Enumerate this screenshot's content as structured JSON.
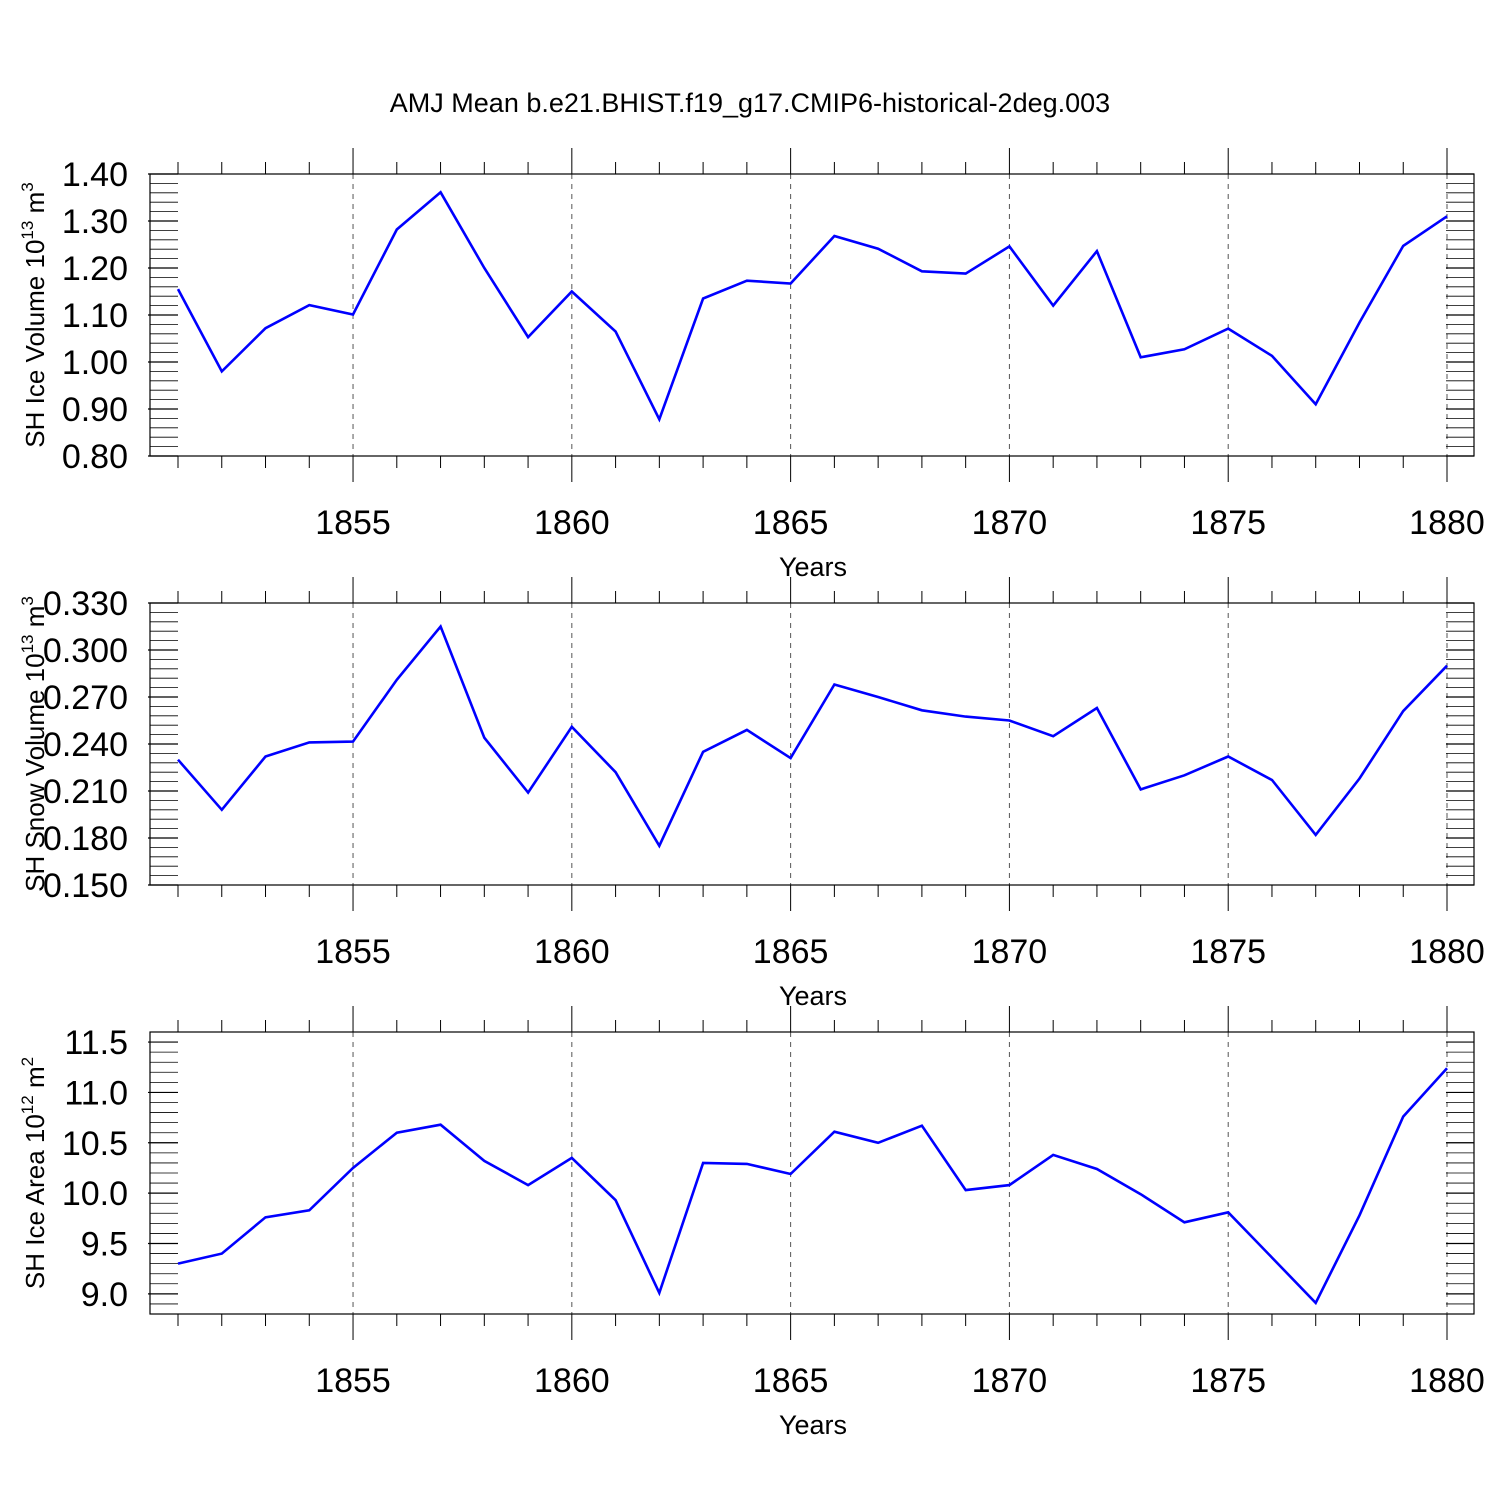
{
  "figure": {
    "title": "AMJ Mean b.e21.BHIST.f19_g17.CMIP6-historical-2deg.003",
    "line_color": "#0000ff"
  },
  "chart_data": [
    {
      "type": "line",
      "ylabel_main": "SH Ice Volume 10",
      "ylabel_exp": "13",
      "ylabel_unit": " m",
      "ylabel_unit_exp": "3",
      "xlabel": "Years",
      "xlim": [
        1851,
        1880
      ],
      "ylim": [
        0.8,
        1.4
      ],
      "grid": "vertical dashed at major x ticks",
      "x_ticks": [
        1855,
        1860,
        1865,
        1870,
        1875,
        1880
      ],
      "x_tick_labels": [
        "1855",
        "1860",
        "1865",
        "1870",
        "1875",
        "1880"
      ],
      "y_ticks": [
        0.8,
        0.9,
        1.0,
        1.1,
        1.2,
        1.3,
        1.4
      ],
      "y_tick_labels": [
        "0.80",
        "0.90",
        "1.00",
        "1.10",
        "1.20",
        "1.30",
        "1.40"
      ],
      "y_minor_step": 0.02,
      "x": [
        1851,
        1852,
        1853,
        1854,
        1855,
        1856,
        1857,
        1858,
        1859,
        1860,
        1861,
        1862,
        1863,
        1864,
        1865,
        1866,
        1867,
        1868,
        1869,
        1870,
        1871,
        1872,
        1873,
        1874,
        1875,
        1876,
        1877,
        1878,
        1879,
        1880
      ],
      "values": [
        1.155,
        0.98,
        1.072,
        1.121,
        1.101,
        1.282,
        1.361,
        1.2,
        1.053,
        1.15,
        1.065,
        0.878,
        1.135,
        1.173,
        1.167,
        1.268,
        1.241,
        1.193,
        1.188,
        1.246,
        1.12,
        1.236,
        1.01,
        1.027,
        1.071,
        1.013,
        0.91,
        1.084,
        1.247,
        1.31
      ]
    },
    {
      "type": "line",
      "ylabel_main": "SH Snow Volume 10",
      "ylabel_exp": "13",
      "ylabel_unit": " m",
      "ylabel_unit_exp": "3",
      "xlabel": "Years",
      "xlim": [
        1851,
        1880
      ],
      "ylim": [
        0.15,
        0.33
      ],
      "grid": "vertical dashed at major x ticks",
      "x_ticks": [
        1855,
        1860,
        1865,
        1870,
        1875,
        1880
      ],
      "x_tick_labels": [
        "1855",
        "1860",
        "1865",
        "1870",
        "1875",
        "1880"
      ],
      "y_ticks": [
        0.15,
        0.18,
        0.21,
        0.24,
        0.27,
        0.3,
        0.33
      ],
      "y_tick_labels": [
        "0.150",
        "0.180",
        "0.210",
        "0.240",
        "0.270",
        "0.300",
        "0.330"
      ],
      "y_minor_step": 0.006,
      "x": [
        1851,
        1852,
        1853,
        1854,
        1855,
        1856,
        1857,
        1858,
        1859,
        1860,
        1861,
        1862,
        1863,
        1864,
        1865,
        1866,
        1867,
        1868,
        1869,
        1870,
        1871,
        1872,
        1873,
        1874,
        1875,
        1876,
        1877,
        1878,
        1879,
        1880
      ],
      "values": [
        0.23,
        0.198,
        0.232,
        0.241,
        0.2415,
        0.281,
        0.315,
        0.244,
        0.209,
        0.251,
        0.222,
        0.175,
        0.235,
        0.249,
        0.231,
        0.278,
        0.27,
        0.2615,
        0.2575,
        0.255,
        0.245,
        0.263,
        0.211,
        0.22,
        0.232,
        0.217,
        0.182,
        0.218,
        0.261,
        0.29
      ]
    },
    {
      "type": "line",
      "ylabel_main": "SH Ice Area 10",
      "ylabel_exp": "12",
      "ylabel_unit": " m",
      "ylabel_unit_exp": "2",
      "xlabel": "Years",
      "xlim": [
        1851,
        1880
      ],
      "ylim": [
        8.8,
        11.6
      ],
      "grid": "vertical dashed at major x ticks",
      "x_ticks": [
        1855,
        1860,
        1865,
        1870,
        1875,
        1880
      ],
      "x_tick_labels": [
        "1855",
        "1860",
        "1865",
        "1870",
        "1875",
        "1880"
      ],
      "y_ticks": [
        9.0,
        9.5,
        10.0,
        10.5,
        11.0,
        11.5
      ],
      "y_tick_labels": [
        "9.0",
        "9.5",
        "10.0",
        "10.5",
        "11.0",
        "11.5"
      ],
      "y_minor_step": 0.1,
      "x": [
        1851,
        1852,
        1853,
        1854,
        1855,
        1856,
        1857,
        1858,
        1859,
        1860,
        1861,
        1862,
        1863,
        1864,
        1865,
        1866,
        1867,
        1868,
        1869,
        1870,
        1871,
        1872,
        1873,
        1874,
        1875,
        1876,
        1877,
        1878,
        1879,
        1880
      ],
      "values": [
        9.3,
        9.4,
        9.76,
        9.83,
        10.25,
        10.6,
        10.68,
        10.32,
        10.08,
        10.35,
        9.93,
        9.01,
        10.3,
        10.29,
        10.19,
        10.61,
        10.5,
        10.67,
        10.03,
        10.08,
        10.38,
        10.24,
        9.99,
        9.71,
        9.81,
        9.36,
        8.91,
        9.78,
        10.76,
        11.24
      ]
    }
  ]
}
